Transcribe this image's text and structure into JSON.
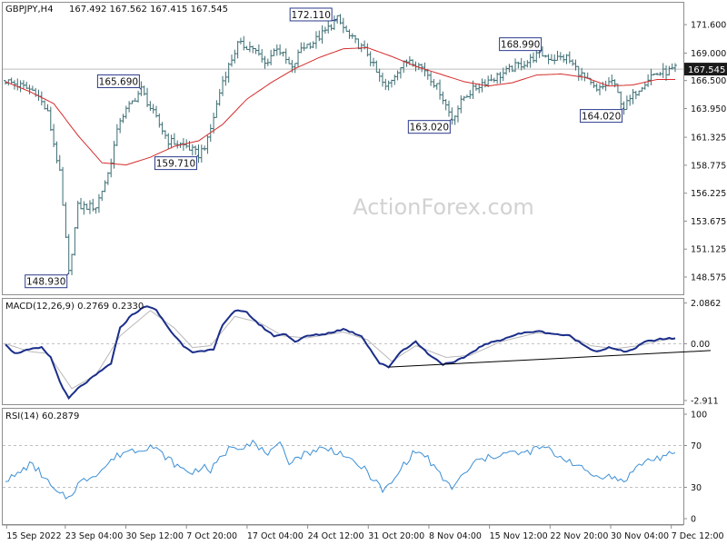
{
  "header": {
    "symbol": "GBPJPY,H4",
    "ohlc": "167.492 167.562 167.415 167.545"
  },
  "watermark": "ActionForex.com",
  "colors": {
    "bar": "#3c6e73",
    "ma": "#d62b2b",
    "macd": "#1b2e8a",
    "macd_signal": "#b8b8b8",
    "rsi": "#3b8fd6",
    "frame": "#8e8e8e",
    "grid": "#bfbfbf",
    "label_border": "#2a3a8c",
    "price_tag": "#1a1a1a"
  },
  "chart_data": [
    {
      "name": "price",
      "type": "ohlc-bar",
      "ylim": [
        147.0,
        173.6
      ],
      "y_ticks": [
        "171.600",
        "169.000",
        "166.500",
        "163.950",
        "161.325",
        "158.775",
        "156.225",
        "153.675",
        "151.125",
        "148.575"
      ],
      "current_price_label": "167.545",
      "current_price": 167.545,
      "moving_average_anchors": [
        [
          0,
          166.4
        ],
        [
          8,
          165.5
        ],
        [
          16,
          164.4
        ],
        [
          24,
          161.5
        ],
        [
          32,
          159.0
        ],
        [
          40,
          158.8
        ],
        [
          48,
          159.5
        ],
        [
          56,
          160.5
        ],
        [
          64,
          161.0
        ],
        [
          72,
          162.5
        ],
        [
          80,
          164.8
        ],
        [
          88,
          166.3
        ],
        [
          96,
          167.6
        ],
        [
          104,
          168.6
        ],
        [
          112,
          169.4
        ],
        [
          120,
          169.5
        ],
        [
          128,
          168.7
        ],
        [
          136,
          167.8
        ],
        [
          144,
          167.1
        ],
        [
          152,
          166.4
        ],
        [
          160,
          166.0
        ],
        [
          168,
          166.3
        ],
        [
          176,
          167.0
        ],
        [
          184,
          167.1
        ],
        [
          192,
          166.8
        ],
        [
          200,
          166.0
        ],
        [
          208,
          166.1
        ],
        [
          216,
          166.6
        ],
        [
          222,
          166.6
        ]
      ],
      "price_anchors": [
        [
          0,
          166.5
        ],
        [
          10,
          165.5
        ],
        [
          14,
          163.5
        ],
        [
          18,
          158.0
        ],
        [
          21,
          148.93
        ],
        [
          24,
          155.0
        ],
        [
          30,
          155.0
        ],
        [
          34,
          158.0
        ],
        [
          38,
          163.0
        ],
        [
          45,
          165.69
        ],
        [
          48,
          164.0
        ],
        [
          54,
          161.0
        ],
        [
          60,
          160.5
        ],
        [
          64,
          159.71
        ],
        [
          67,
          161.0
        ],
        [
          72,
          166.5
        ],
        [
          77,
          169.8
        ],
        [
          82,
          169.5
        ],
        [
          86,
          168.0
        ],
        [
          90,
          169.6
        ],
        [
          95,
          167.5
        ],
        [
          98,
          169.5
        ],
        [
          102,
          170.0
        ],
        [
          106,
          171.0
        ],
        [
          110,
          172.11
        ],
        [
          114,
          170.5
        ],
        [
          120,
          169.0
        ],
        [
          123,
          167.2
        ],
        [
          126,
          165.8
        ],
        [
          130,
          167.5
        ],
        [
          134,
          168.5
        ],
        [
          139,
          167.5
        ],
        [
          144,
          165.5
        ],
        [
          148,
          163.02
        ],
        [
          152,
          165.0
        ],
        [
          158,
          166.3
        ],
        [
          164,
          167.0
        ],
        [
          169,
          167.8
        ],
        [
          173,
          168.2
        ],
        [
          177,
          168.99
        ],
        [
          181,
          168.5
        ],
        [
          186,
          168.6
        ],
        [
          190,
          167.3
        ],
        [
          196,
          165.5
        ],
        [
          201,
          166.5
        ],
        [
          205,
          164.02
        ],
        [
          209,
          165.5
        ],
        [
          214,
          167.0
        ],
        [
          219,
          167.3
        ],
        [
          222,
          167.545
        ]
      ],
      "annotations": [
        {
          "label": "172.110",
          "bar": 110,
          "price": 172.11,
          "pos": "above"
        },
        {
          "label": "165.690",
          "bar": 45,
          "price": 165.69,
          "pos": "above"
        },
        {
          "label": "159.710",
          "bar": 64,
          "price": 159.71,
          "pos": "below"
        },
        {
          "label": "148.930",
          "bar": 21,
          "price": 148.93,
          "pos": "below"
        },
        {
          "label": "163.020",
          "bar": 148,
          "price": 163.02,
          "pos": "below"
        },
        {
          "label": "168.990",
          "bar": 177,
          "price": 168.99,
          "pos": "above"
        },
        {
          "label": "164.020",
          "bar": 205,
          "price": 164.02,
          "pos": "below"
        }
      ]
    },
    {
      "name": "macd",
      "type": "line",
      "title": "MACD(12,26,9) 0.2769 0.2330",
      "ylim": [
        -3.1,
        2.3
      ],
      "y_ticks": [
        {
          "label": "2.0862",
          "value": 2.0862
        },
        {
          "label": "0.00",
          "value": 0.0
        },
        {
          "label": "-2.911",
          "value": -2.911
        }
      ],
      "macd_anchors": [
        [
          0,
          0.0
        ],
        [
          3,
          -0.5
        ],
        [
          8,
          -0.3
        ],
        [
          12,
          -0.2
        ],
        [
          15,
          -0.7
        ],
        [
          19,
          -2.3
        ],
        [
          21,
          -2.8
        ],
        [
          24,
          -2.3
        ],
        [
          30,
          -1.6
        ],
        [
          35,
          -1.0
        ],
        [
          38,
          0.8
        ],
        [
          42,
          1.5
        ],
        [
          47,
          1.95
        ],
        [
          50,
          1.7
        ],
        [
          55,
          0.6
        ],
        [
          59,
          -0.1
        ],
        [
          62,
          -0.4
        ],
        [
          66,
          -0.4
        ],
        [
          69,
          -0.3
        ],
        [
          72,
          1.0
        ],
        [
          76,
          1.7
        ],
        [
          80,
          1.6
        ],
        [
          84,
          1.0
        ],
        [
          89,
          0.4
        ],
        [
          93,
          0.5
        ],
        [
          96,
          0.1
        ],
        [
          100,
          0.4
        ],
        [
          106,
          0.5
        ],
        [
          112,
          0.75
        ],
        [
          118,
          0.4
        ],
        [
          124,
          -1.0
        ],
        [
          127,
          -1.2
        ],
        [
          131,
          -0.4
        ],
        [
          136,
          0.1
        ],
        [
          140,
          -0.5
        ],
        [
          145,
          -1.05
        ],
        [
          148,
          -1.0
        ],
        [
          152,
          -0.7
        ],
        [
          158,
          -0.1
        ],
        [
          164,
          0.2
        ],
        [
          170,
          0.5
        ],
        [
          176,
          0.65
        ],
        [
          182,
          0.5
        ],
        [
          187,
          0.4
        ],
        [
          192,
          -0.1
        ],
        [
          196,
          -0.4
        ],
        [
          200,
          -0.2
        ],
        [
          205,
          -0.4
        ],
        [
          208,
          -0.3
        ],
        [
          212,
          0.1
        ],
        [
          218,
          0.25
        ],
        [
          222,
          0.28
        ]
      ],
      "signal_anchors": [
        [
          0,
          0.0
        ],
        [
          8,
          -0.4
        ],
        [
          14,
          -0.5
        ],
        [
          22,
          -2.3
        ],
        [
          30,
          -1.6
        ],
        [
          38,
          0.4
        ],
        [
          48,
          1.7
        ],
        [
          56,
          0.8
        ],
        [
          62,
          -0.2
        ],
        [
          68,
          -0.1
        ],
        [
          76,
          1.4
        ],
        [
          84,
          1.1
        ],
        [
          92,
          0.4
        ],
        [
          100,
          0.3
        ],
        [
          112,
          0.6
        ],
        [
          120,
          0.2
        ],
        [
          128,
          -0.9
        ],
        [
          136,
          -0.1
        ],
        [
          146,
          -0.7
        ],
        [
          154,
          -0.6
        ],
        [
          164,
          0.1
        ],
        [
          176,
          0.55
        ],
        [
          186,
          0.45
        ],
        [
          194,
          -0.1
        ],
        [
          202,
          -0.25
        ],
        [
          210,
          -0.1
        ],
        [
          218,
          0.2
        ],
        [
          222,
          0.23
        ]
      ],
      "trendline": [
        [
          127,
          -1.2
        ],
        [
          234,
          -0.35
        ]
      ]
    },
    {
      "name": "rsi",
      "type": "line",
      "title": "RSI(14) 60.2879",
      "ylim": [
        0,
        100
      ],
      "y_ticks": [
        {
          "label": "100",
          "value": 100
        },
        {
          "label": "70",
          "value": 70
        },
        {
          "label": "30",
          "value": 30
        },
        {
          "label": "0",
          "value": 0
        }
      ],
      "levels": [
        70,
        30
      ],
      "rsi_anchors": [
        [
          0,
          38
        ],
        [
          3,
          40
        ],
        [
          8,
          52
        ],
        [
          11,
          46
        ],
        [
          14,
          35
        ],
        [
          17,
          24
        ],
        [
          21,
          20
        ],
        [
          24,
          33
        ],
        [
          28,
          40
        ],
        [
          32,
          47
        ],
        [
          36,
          58
        ],
        [
          40,
          65
        ],
        [
          44,
          66
        ],
        [
          48,
          70
        ],
        [
          51,
          64
        ],
        [
          55,
          55
        ],
        [
          58,
          48
        ],
        [
          62,
          44
        ],
        [
          65,
          50
        ],
        [
          68,
          46
        ],
        [
          72,
          60
        ],
        [
          75,
          70
        ],
        [
          78,
          69
        ],
        [
          82,
          74
        ],
        [
          84,
          66
        ],
        [
          88,
          63
        ],
        [
          91,
          70
        ],
        [
          94,
          55
        ],
        [
          97,
          59
        ],
        [
          100,
          63
        ],
        [
          104,
          67
        ],
        [
          108,
          66
        ],
        [
          112,
          62
        ],
        [
          114,
          55
        ],
        [
          118,
          50
        ],
        [
          122,
          38
        ],
        [
          125,
          27
        ],
        [
          128,
          33
        ],
        [
          132,
          52
        ],
        [
          136,
          65
        ],
        [
          140,
          58
        ],
        [
          143,
          45
        ],
        [
          146,
          35
        ],
        [
          148,
          30
        ],
        [
          152,
          42
        ],
        [
          156,
          55
        ],
        [
          160,
          58
        ],
        [
          164,
          62
        ],
        [
          168,
          63
        ],
        [
          172,
          62
        ],
        [
          176,
          67
        ],
        [
          179,
          68
        ],
        [
          183,
          60
        ],
        [
          187,
          56
        ],
        [
          190,
          49
        ],
        [
          193,
          45
        ],
        [
          196,
          40
        ],
        [
          199,
          42
        ],
        [
          202,
          38
        ],
        [
          205,
          36
        ],
        [
          208,
          46
        ],
        [
          212,
          55
        ],
        [
          216,
          58
        ],
        [
          220,
          61
        ],
        [
          222,
          60.3
        ]
      ]
    }
  ],
  "x_axis": {
    "labels": [
      {
        "label": "15 Sep 2022",
        "bar": 2
      },
      {
        "label": "23 Sep 04:00",
        "bar": 32
      },
      {
        "label": "30 Sep 12:00",
        "bar": 63
      },
      {
        "label": "7 Oct 20:00",
        "bar": 94
      },
      {
        "label": "17 Oct 04:00",
        "bar": 125
      },
      {
        "label": "24 Oct 12:00",
        "bar": 156
      },
      {
        "label": "31 Oct 20:00",
        "bar": 187
      },
      {
        "label": "8 Nov 04:00",
        "bar": 218
      },
      {
        "label": "15 Nov 12:00",
        "bar": 249
      },
      {
        "label": "22 Nov 20:00",
        "bar": 280
      },
      {
        "label": "30 Nov 04:00",
        "bar": 311
      },
      {
        "label": "7 Dec 12:00",
        "bar": 342
      }
    ]
  }
}
